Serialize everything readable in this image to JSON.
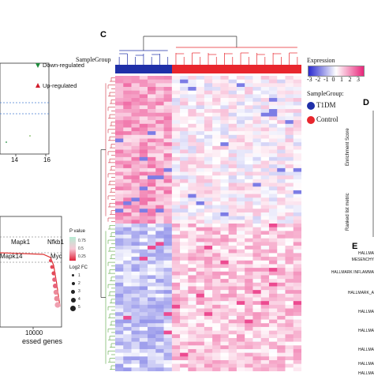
{
  "panels": {
    "c_letter": "C",
    "d_letter": "D",
    "e_letter": "E"
  },
  "volcano": {
    "legend_down": "Down-regulated",
    "legend_up": "Up-regulated",
    "x_ticks": [
      "14",
      "16"
    ],
    "down_color": "#1e8a3c",
    "up_color": "#d11c2c",
    "threshold_color": "#4a7fd4"
  },
  "ranked_plot": {
    "gene_labels": [
      "Mapk1",
      "Nfkb1",
      "Mapk14",
      "Myc"
    ],
    "x_tick": "10000",
    "x_label_partial": "essed genes",
    "pvalue_title": "P value",
    "pvalue_ticks": [
      "0.75",
      "0.5",
      "0.25"
    ],
    "logfc_title": "Log2 FC",
    "logfc_ticks": [
      "1",
      "2",
      "3",
      "4",
      "5"
    ]
  },
  "heatmap": {
    "sample_group_label": "SampleGroup",
    "expression_title": "Expression",
    "expression_ticks": [
      "-3",
      "-2",
      "-1",
      "0",
      "1",
      "2",
      "3"
    ],
    "samplegroup_legend_title": "SampleGroup:",
    "groups": [
      {
        "name": "T1DM",
        "color": "#1f2fa8"
      },
      {
        "name": "Control",
        "color": "#e8262d"
      }
    ],
    "n_t1dm": 7,
    "n_control": 16,
    "n_rows": 80,
    "low_color": "#3b3bd8",
    "mid_color": "#ffffff",
    "high_color": "#e8267a"
  },
  "panel_d": {
    "y_label_top": "Enrichment Score",
    "y_label_bottom": "Ranked list metric"
  },
  "panel_e": {
    "terms": [
      "HALLMA",
      "MESENCHY",
      "HALLMARK INFLAMMA",
      "HALLMARK_A",
      "HALLMA",
      "HALLMA",
      "HALLMA",
      "HALLMA",
      "HALLMA"
    ]
  }
}
